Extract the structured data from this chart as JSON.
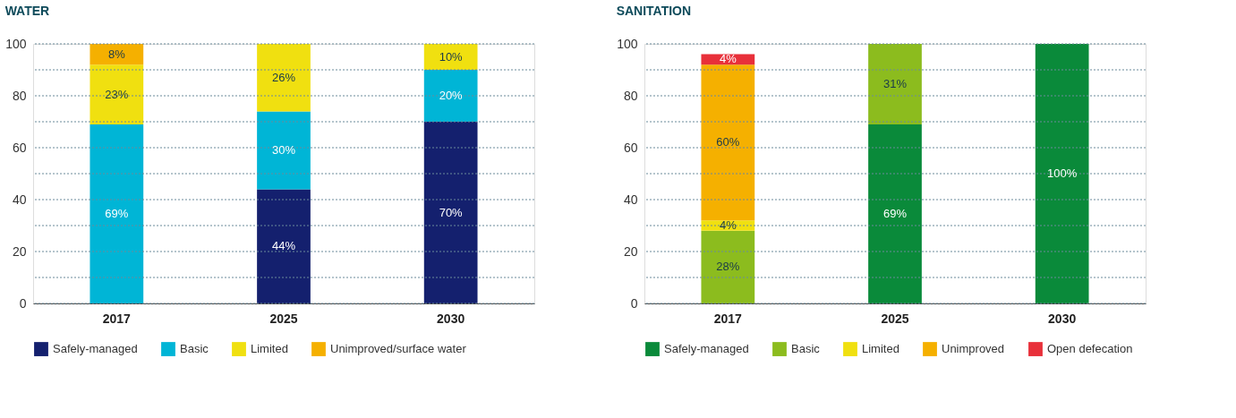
{
  "chart_data": [
    {
      "type": "bar",
      "title": "WATER",
      "stacked": true,
      "categories": [
        "2017",
        "2025",
        "2030"
      ],
      "ylim": [
        0,
        100
      ],
      "yticks": [
        0,
        {
          "value": 10,
          "label": null
        },
        20,
        {
          "value": 30,
          "label": null
        },
        40,
        {
          "value": 50,
          "label": null
        },
        60,
        {
          "value": 70,
          "label": null
        },
        80,
        {
          "value": 90,
          "label": null
        },
        100
      ],
      "grid": "y",
      "legend": "bottom",
      "series": [
        {
          "name": "Safely-managed",
          "color": "#14206e",
          "values": [
            null,
            44,
            70
          ],
          "value_labels": [
            null,
            "44%",
            "70%"
          ]
        },
        {
          "name": "Basic",
          "color": "#00b5d6",
          "values": [
            69,
            30,
            20
          ],
          "value_labels": [
            "69%",
            "30%",
            "20%"
          ]
        },
        {
          "name": "Limited",
          "color": "#f0e010",
          "values": [
            23,
            26,
            10
          ],
          "value_labels": [
            "23%",
            "26%",
            "10%"
          ]
        },
        {
          "name": "Unimproved/surface water",
          "color": "#f5b000",
          "values": [
            8,
            null,
            null
          ],
          "value_labels": [
            "8%",
            null,
            null
          ]
        }
      ]
    },
    {
      "type": "bar",
      "title": "SANITATION",
      "stacked": true,
      "categories": [
        "2017",
        "2025",
        "2030"
      ],
      "ylim": [
        0,
        100
      ],
      "yticks": [
        0,
        {
          "value": 10,
          "label": null
        },
        20,
        {
          "value": 30,
          "label": null
        },
        40,
        {
          "value": 50,
          "label": null
        },
        60,
        {
          "value": 70,
          "label": null
        },
        80,
        {
          "value": 90,
          "label": null
        },
        100
      ],
      "grid": "y",
      "legend": "bottom",
      "series": [
        {
          "name": "Safely-managed",
          "color": "#0a8a3a",
          "values": [
            null,
            69,
            100
          ],
          "value_labels": [
            null,
            "69%",
            "100%"
          ]
        },
        {
          "name": "Basic",
          "color": "#8cbc1e",
          "values": [
            28,
            31,
            null
          ],
          "value_labels": [
            "28%",
            "31%",
            null
          ]
        },
        {
          "name": "Limited",
          "color": "#f0e010",
          "values": [
            4,
            null,
            null
          ],
          "value_labels": [
            "4%",
            null,
            null
          ]
        },
        {
          "name": "Unimproved",
          "color": "#f5b000",
          "values": [
            60,
            null,
            null
          ],
          "value_labels": [
            "60%",
            null,
            null
          ]
        },
        {
          "name": "Open defecation",
          "color": "#e8303a",
          "values": [
            4,
            null,
            null
          ],
          "value_labels": [
            "4%",
            null,
            null
          ]
        }
      ]
    }
  ]
}
